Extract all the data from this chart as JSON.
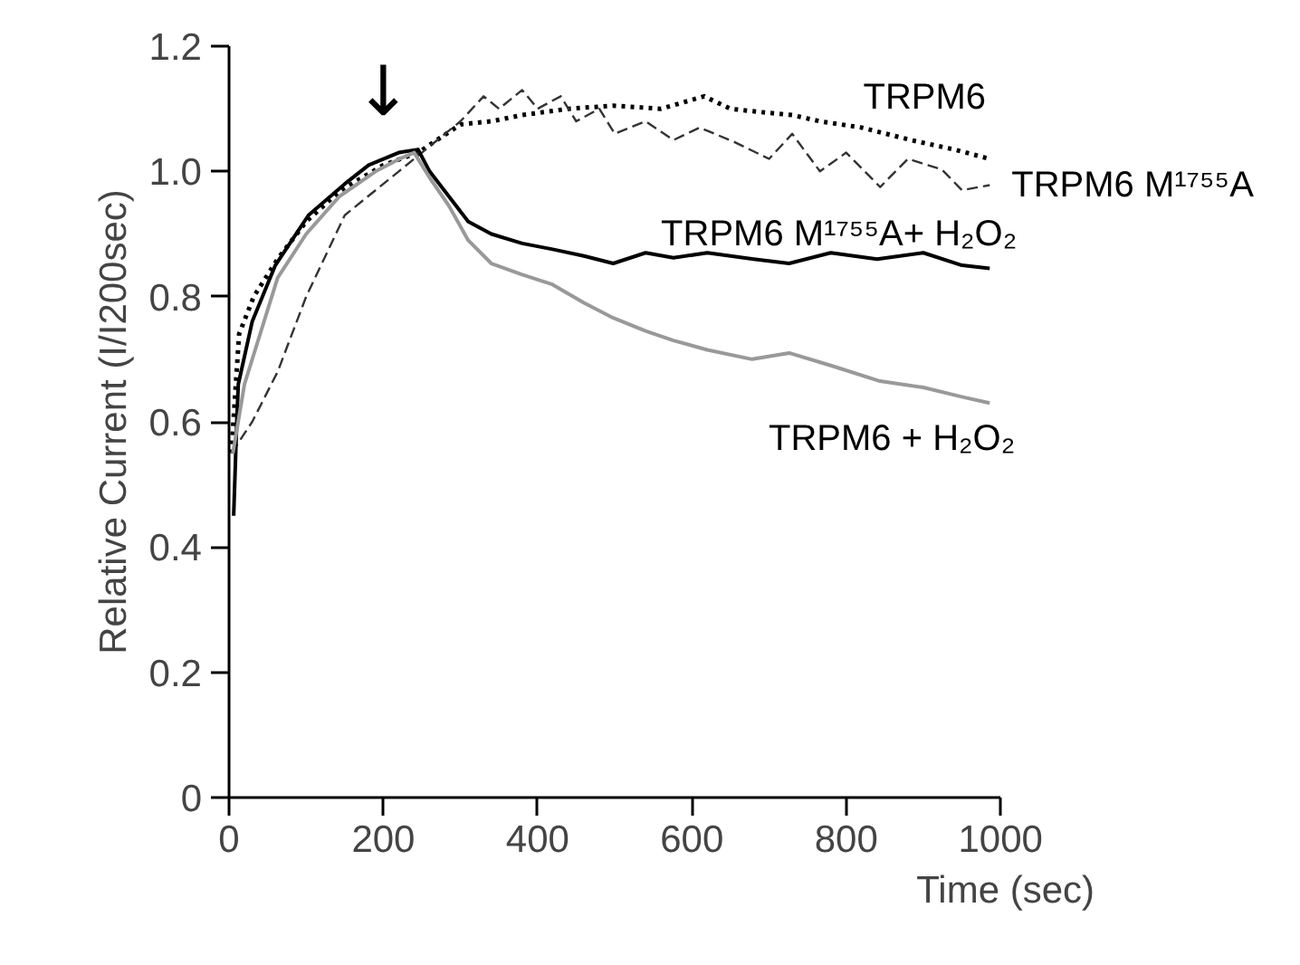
{
  "chart_data": {
    "type": "line",
    "xlabel": "Time (sec)",
    "ylabel": "Relative Current (I/I200sec)",
    "xlim": [
      0,
      1000
    ],
    "ylim": [
      0,
      1.2
    ],
    "xticks": [
      0,
      200,
      400,
      600,
      800,
      1000
    ],
    "yticks": [
      0,
      0.2,
      0.4,
      0.6,
      0.8,
      {
        "value": 1,
        "label": "1.0"
      },
      1.2
    ],
    "grid": false,
    "legend": false,
    "series": [
      {
        "name": "TRPM6",
        "color": "#000000",
        "line_style": "dotted",
        "x": [
          3,
          13,
          32,
          63,
          100,
          145,
          200,
          245,
          300,
          340,
          380,
          440,
          498,
          560,
          616,
          650,
          687,
          730,
          766,
          820,
          884,
          940,
          986
        ],
        "values": [
          0.55,
          0.74,
          0.8,
          0.86,
          0.92,
          0.97,
          1.01,
          1.03,
          1.075,
          1.08,
          1.09,
          1.1,
          1.105,
          1.1,
          1.12,
          1.1,
          1.095,
          1.09,
          1.08,
          1.07,
          1.05,
          1.035,
          1.02
        ]
      },
      {
        "name": "TRPM6 M¹⁷⁵⁵A",
        "color": "#333333",
        "line_style": "dashed",
        "x": [
          3,
          30,
          63,
          100,
          150,
          220,
          250,
          280,
          300,
          330,
          350,
          380,
          400,
          430,
          450,
          480,
          500,
          540,
          576,
          610,
          655,
          700,
          730,
          766,
          800,
          844,
          880,
          924,
          950,
          986
        ],
        "values": [
          0.55,
          0.6,
          0.68,
          0.8,
          0.93,
          1.0,
          1.03,
          1.06,
          1.08,
          1.12,
          1.1,
          1.13,
          1.1,
          1.12,
          1.08,
          1.1,
          1.06,
          1.08,
          1.05,
          1.07,
          1.047,
          1.02,
          1.06,
          1.0,
          1.03,
          0.975,
          1.02,
          1.003,
          0.97,
          0.978
        ]
      },
      {
        "name": "TRPM6 M¹⁷⁵⁵A+ H₂O₂",
        "color": "#000000",
        "line_style": "solid",
        "x": [
          6,
          10,
          12,
          30,
          60,
          103,
          150,
          181,
          220,
          245,
          260,
          285,
          310,
          340,
          380,
          418,
          460,
          498,
          540,
          576,
          620,
          680,
          726,
          780,
          840,
          900,
          950,
          986
        ],
        "values": [
          0.45,
          0.6,
          0.66,
          0.76,
          0.85,
          0.93,
          0.98,
          1.01,
          1.03,
          1.035,
          1.0,
          0.96,
          0.92,
          0.9,
          0.885,
          0.876,
          0.865,
          0.853,
          0.87,
          0.862,
          0.87,
          0.86,
          0.853,
          0.87,
          0.86,
          0.87,
          0.85,
          0.845
        ]
      },
      {
        "name": "TRPM6 + H₂O₂",
        "color": "#999999",
        "line_style": "solid",
        "x": [
          5,
          20,
          63,
          100,
          143,
          190,
          221,
          240,
          260,
          285,
          310,
          340,
          380,
          418,
          460,
          498,
          540,
          576,
          620,
          678,
          726,
          780,
          844,
          900,
          950,
          986
        ],
        "values": [
          0.55,
          0.66,
          0.83,
          0.9,
          0.96,
          1.0,
          1.02,
          1.03,
          0.99,
          0.945,
          0.89,
          0.853,
          0.835,
          0.82,
          0.79,
          0.766,
          0.745,
          0.73,
          0.715,
          0.7,
          0.71,
          0.69,
          0.665,
          0.655,
          0.64,
          0.63
        ]
      }
    ],
    "annotations": [
      "↓"
    ]
  }
}
